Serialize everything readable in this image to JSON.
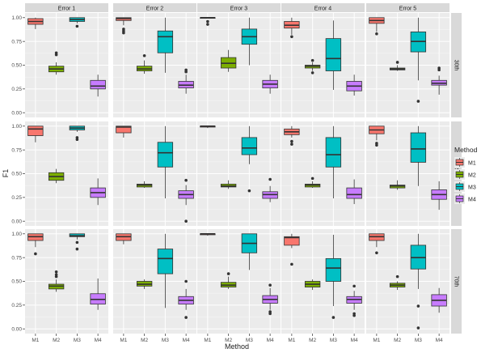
{
  "chart_data": {
    "type": "boxplot",
    "title": "",
    "xlabel": "Method",
    "ylabel": "F1",
    "ylim": [
      0,
      1
    ],
    "yticks": [
      "0.00",
      "0.25",
      "0.50",
      "0.75",
      "1.00"
    ],
    "ytick_values": [
      0,
      0.25,
      0.5,
      0.75,
      1.0
    ],
    "categories": [
      "M1",
      "M2",
      "M3",
      "M4"
    ],
    "columns": [
      "Error 1",
      "Error 2",
      "Error 3",
      "Error 4",
      "Error 5"
    ],
    "rows": [
      "30th",
      "50th",
      "70th"
    ],
    "legend": {
      "title": "Method",
      "entries": [
        "M1",
        "M2",
        "M3",
        "M4"
      ],
      "colors": [
        "#F8766D",
        "#7CAE00",
        "#00BFC4",
        "#C77CFF"
      ],
      "position": "right"
    },
    "panels": [
      {
        "row": "30th",
        "column": "Error 1",
        "boxes": [
          {
            "method": "M1",
            "min": 0.88,
            "q1": 0.93,
            "median": 0.96,
            "q3": 0.99,
            "max": 1.0,
            "outliers": []
          },
          {
            "method": "M2",
            "min": 0.4,
            "q1": 0.43,
            "median": 0.46,
            "q3": 0.49,
            "max": 0.53,
            "outliers": [
              0.61,
              0.63
            ]
          },
          {
            "method": "M3",
            "min": 0.94,
            "q1": 0.96,
            "median": 0.98,
            "q3": 1.0,
            "max": 1.0,
            "outliers": [
              0.91
            ]
          },
          {
            "method": "M4",
            "min": 0.17,
            "q1": 0.25,
            "median": 0.28,
            "q3": 0.34,
            "max": 0.4,
            "outliers": []
          }
        ]
      },
      {
        "row": "30th",
        "column": "Error 2",
        "boxes": [
          {
            "method": "M1",
            "min": 0.92,
            "q1": 0.97,
            "median": 0.99,
            "q3": 1.0,
            "max": 1.0,
            "outliers": [
              0.86,
              0.88,
              0.84
            ]
          },
          {
            "method": "M2",
            "min": 0.41,
            "q1": 0.44,
            "median": 0.46,
            "q3": 0.49,
            "max": 0.55,
            "outliers": [
              0.6
            ]
          },
          {
            "method": "M3",
            "min": 0.42,
            "q1": 0.63,
            "median": 0.8,
            "q3": 0.86,
            "max": 1.0,
            "outliers": []
          },
          {
            "method": "M4",
            "min": 0.2,
            "q1": 0.26,
            "median": 0.29,
            "q3": 0.33,
            "max": 0.4,
            "outliers": [
              0.45,
              0.43
            ]
          }
        ]
      },
      {
        "row": "30th",
        "column": "Error 3",
        "boxes": [
          {
            "method": "M1",
            "min": 0.99,
            "q1": 1.0,
            "median": 1.0,
            "q3": 1.0,
            "max": 1.0,
            "outliers": [
              0.96,
              0.93
            ]
          },
          {
            "method": "M2",
            "min": 0.43,
            "q1": 0.47,
            "median": 0.52,
            "q3": 0.58,
            "max": 0.66,
            "outliers": []
          },
          {
            "method": "M3",
            "min": 0.5,
            "q1": 0.72,
            "median": 0.8,
            "q3": 0.88,
            "max": 1.0,
            "outliers": []
          },
          {
            "method": "M4",
            "min": 0.2,
            "q1": 0.26,
            "median": 0.3,
            "q3": 0.34,
            "max": 0.4,
            "outliers": []
          }
        ]
      },
      {
        "row": "30th",
        "column": "Error 4",
        "boxes": [
          {
            "method": "M1",
            "min": 0.82,
            "q1": 0.89,
            "median": 0.92,
            "q3": 0.96,
            "max": 1.0,
            "outliers": [
              0.8
            ]
          },
          {
            "method": "M2",
            "min": 0.44,
            "q1": 0.47,
            "median": 0.49,
            "q3": 0.5,
            "max": 0.53,
            "outliers": [
              0.42,
              0.55
            ]
          },
          {
            "method": "M3",
            "min": 0.24,
            "q1": 0.44,
            "median": 0.57,
            "q3": 0.78,
            "max": 0.97,
            "outliers": []
          },
          {
            "method": "M4",
            "min": 0.18,
            "q1": 0.23,
            "median": 0.28,
            "q3": 0.33,
            "max": 0.4,
            "outliers": []
          }
        ]
      },
      {
        "row": "30th",
        "column": "Error 5",
        "boxes": [
          {
            "method": "M1",
            "min": 0.85,
            "q1": 0.94,
            "median": 0.97,
            "q3": 1.0,
            "max": 1.0,
            "outliers": [
              0.83
            ]
          },
          {
            "method": "M2",
            "min": 0.44,
            "q1": 0.45,
            "median": 0.46,
            "q3": 0.47,
            "max": 0.5,
            "outliers": [
              0.53
            ]
          },
          {
            "method": "M3",
            "min": 0.34,
            "q1": 0.64,
            "median": 0.75,
            "q3": 0.85,
            "max": 1.0,
            "outliers": [
              0.12
            ]
          },
          {
            "method": "M4",
            "min": 0.19,
            "q1": 0.29,
            "median": 0.31,
            "q3": 0.34,
            "max": 0.39,
            "outliers": [
              0.45,
              0.47
            ]
          }
        ]
      },
      {
        "row": "50th",
        "column": "Error 1",
        "boxes": [
          {
            "method": "M1",
            "min": 0.83,
            "q1": 0.9,
            "median": 0.97,
            "q3": 1.0,
            "max": 1.0,
            "outliers": []
          },
          {
            "method": "M2",
            "min": 0.4,
            "q1": 0.43,
            "median": 0.47,
            "q3": 0.51,
            "max": 0.55,
            "outliers": []
          },
          {
            "method": "M3",
            "min": 0.94,
            "q1": 0.96,
            "median": 0.98,
            "q3": 1.0,
            "max": 1.0,
            "outliers": [
              0.88,
              0.86
            ]
          },
          {
            "method": "M4",
            "min": 0.17,
            "q1": 0.25,
            "median": 0.3,
            "q3": 0.35,
            "max": 0.45,
            "outliers": []
          }
        ]
      },
      {
        "row": "50th",
        "column": "Error 2",
        "boxes": [
          {
            "method": "M1",
            "min": 0.88,
            "q1": 0.93,
            "median": 0.99,
            "q3": 1.0,
            "max": 1.0,
            "outliers": []
          },
          {
            "method": "M2",
            "min": 0.35,
            "q1": 0.36,
            "median": 0.38,
            "q3": 0.39,
            "max": 0.42,
            "outliers": []
          },
          {
            "method": "M3",
            "min": 0.24,
            "q1": 0.57,
            "median": 0.72,
            "q3": 0.83,
            "max": 1.0,
            "outliers": []
          },
          {
            "method": "M4",
            "min": 0.17,
            "q1": 0.24,
            "median": 0.28,
            "q3": 0.32,
            "max": 0.38,
            "outliers": [
              0.0,
              0.43
            ]
          }
        ]
      },
      {
        "row": "50th",
        "column": "Error 3",
        "boxes": [
          {
            "method": "M1",
            "min": 0.98,
            "q1": 0.99,
            "median": 1.0,
            "q3": 1.0,
            "max": 1.0,
            "outliers": []
          },
          {
            "method": "M2",
            "min": 0.34,
            "q1": 0.36,
            "median": 0.37,
            "q3": 0.39,
            "max": 0.43,
            "outliers": []
          },
          {
            "method": "M3",
            "min": 0.6,
            "q1": 0.7,
            "median": 0.77,
            "q3": 0.88,
            "max": 1.0,
            "outliers": [
              0.32
            ]
          },
          {
            "method": "M4",
            "min": 0.2,
            "q1": 0.24,
            "median": 0.28,
            "q3": 0.31,
            "max": 0.37,
            "outliers": [
              0.44
            ]
          }
        ]
      },
      {
        "row": "50th",
        "column": "Error 4",
        "boxes": [
          {
            "method": "M1",
            "min": 0.88,
            "q1": 0.91,
            "median": 0.94,
            "q3": 0.97,
            "max": 1.0,
            "outliers": [
              0.84,
              0.81
            ]
          },
          {
            "method": "M2",
            "min": 0.35,
            "q1": 0.36,
            "median": 0.38,
            "q3": 0.39,
            "max": 0.42,
            "outliers": [
              0.45
            ]
          },
          {
            "method": "M3",
            "min": 0.24,
            "q1": 0.57,
            "median": 0.7,
            "q3": 0.88,
            "max": 1.0,
            "outliers": []
          },
          {
            "method": "M4",
            "min": 0.18,
            "q1": 0.24,
            "median": 0.28,
            "q3": 0.35,
            "max": 0.44,
            "outliers": []
          }
        ]
      },
      {
        "row": "50th",
        "column": "Error 5",
        "boxes": [
          {
            "method": "M1",
            "min": 0.85,
            "q1": 0.92,
            "median": 0.96,
            "q3": 1.0,
            "max": 1.0,
            "outliers": [
              0.82,
              0.8
            ]
          },
          {
            "method": "M2",
            "min": 0.33,
            "q1": 0.35,
            "median": 0.37,
            "q3": 0.38,
            "max": 0.43,
            "outliers": []
          },
          {
            "method": "M3",
            "min": 0.37,
            "q1": 0.62,
            "median": 0.76,
            "q3": 0.93,
            "max": 1.0,
            "outliers": []
          },
          {
            "method": "M4",
            "min": 0.12,
            "q1": 0.23,
            "median": 0.28,
            "q3": 0.33,
            "max": 0.42,
            "outliers": []
          }
        ]
      },
      {
        "row": "70th",
        "column": "Error 1",
        "boxes": [
          {
            "method": "M1",
            "min": 0.86,
            "q1": 0.93,
            "median": 0.97,
            "q3": 1.0,
            "max": 1.0,
            "outliers": [
              0.79
            ]
          },
          {
            "method": "M2",
            "min": 0.39,
            "q1": 0.42,
            "median": 0.45,
            "q3": 0.47,
            "max": 0.52,
            "outliers": [
              0.55,
              0.6,
              0.57
            ]
          },
          {
            "method": "M3",
            "min": 0.94,
            "q1": 0.97,
            "median": 0.98,
            "q3": 1.0,
            "max": 1.0,
            "outliers": [
              0.91,
              0.84
            ]
          },
          {
            "method": "M4",
            "min": 0.2,
            "q1": 0.26,
            "median": 0.31,
            "q3": 0.37,
            "max": 0.53,
            "outliers": []
          }
        ]
      },
      {
        "row": "70th",
        "column": "Error 2",
        "boxes": [
          {
            "method": "M1",
            "min": 0.89,
            "q1": 0.93,
            "median": 0.97,
            "q3": 1.0,
            "max": 1.0,
            "outliers": []
          },
          {
            "method": "M2",
            "min": 0.42,
            "q1": 0.45,
            "median": 0.47,
            "q3": 0.5,
            "max": 0.52,
            "outliers": []
          },
          {
            "method": "M3",
            "min": 0.22,
            "q1": 0.58,
            "median": 0.74,
            "q3": 0.84,
            "max": 1.0,
            "outliers": []
          },
          {
            "method": "M4",
            "min": 0.2,
            "q1": 0.26,
            "median": 0.3,
            "q3": 0.34,
            "max": 0.42,
            "outliers": [
              0.5,
              0.12
            ]
          }
        ]
      },
      {
        "row": "70th",
        "column": "Error 3",
        "boxes": [
          {
            "method": "M1",
            "min": 0.98,
            "q1": 0.99,
            "median": 1.0,
            "q3": 1.0,
            "max": 1.0,
            "outliers": []
          },
          {
            "method": "M2",
            "min": 0.42,
            "q1": 0.44,
            "median": 0.46,
            "q3": 0.49,
            "max": 0.55,
            "outliers": [
              0.58
            ]
          },
          {
            "method": "M3",
            "min": 0.62,
            "q1": 0.8,
            "median": 0.9,
            "q3": 1.0,
            "max": 1.0,
            "outliers": []
          },
          {
            "method": "M4",
            "min": 0.2,
            "q1": 0.27,
            "median": 0.31,
            "q3": 0.35,
            "max": 0.43,
            "outliers": [
              0.18,
              0.16,
              0.46
            ]
          }
        ]
      },
      {
        "row": "70th",
        "column": "Error 4",
        "boxes": [
          {
            "method": "M1",
            "min": 0.85,
            "q1": 0.88,
            "median": 0.96,
            "q3": 0.97,
            "max": 1.0,
            "outliers": [
              0.68
            ]
          },
          {
            "method": "M2",
            "min": 0.41,
            "q1": 0.44,
            "median": 0.47,
            "q3": 0.5,
            "max": 0.52,
            "outliers": []
          },
          {
            "method": "M3",
            "min": 0.24,
            "q1": 0.5,
            "median": 0.64,
            "q3": 0.74,
            "max": 0.99,
            "outliers": [
              0.12
            ]
          },
          {
            "method": "M4",
            "min": 0.2,
            "q1": 0.27,
            "median": 0.31,
            "q3": 0.34,
            "max": 0.4,
            "outliers": [
              0.16,
              0.14,
              0.45
            ]
          }
        ]
      },
      {
        "row": "70th",
        "column": "Error 5",
        "boxes": [
          {
            "method": "M1",
            "min": 0.86,
            "q1": 0.93,
            "median": 0.97,
            "q3": 1.0,
            "max": 1.0,
            "outliers": [
              0.8
            ]
          },
          {
            "method": "M2",
            "min": 0.41,
            "q1": 0.44,
            "median": 0.46,
            "q3": 0.48,
            "max": 0.5,
            "outliers": [
              0.55
            ]
          },
          {
            "method": "M3",
            "min": 0.42,
            "q1": 0.63,
            "median": 0.75,
            "q3": 0.88,
            "max": 1.0,
            "outliers": [
              0.24,
              0.01
            ]
          },
          {
            "method": "M4",
            "min": 0.17,
            "q1": 0.24,
            "median": 0.3,
            "q3": 0.36,
            "max": 0.43,
            "outliers": []
          }
        ]
      }
    ]
  }
}
